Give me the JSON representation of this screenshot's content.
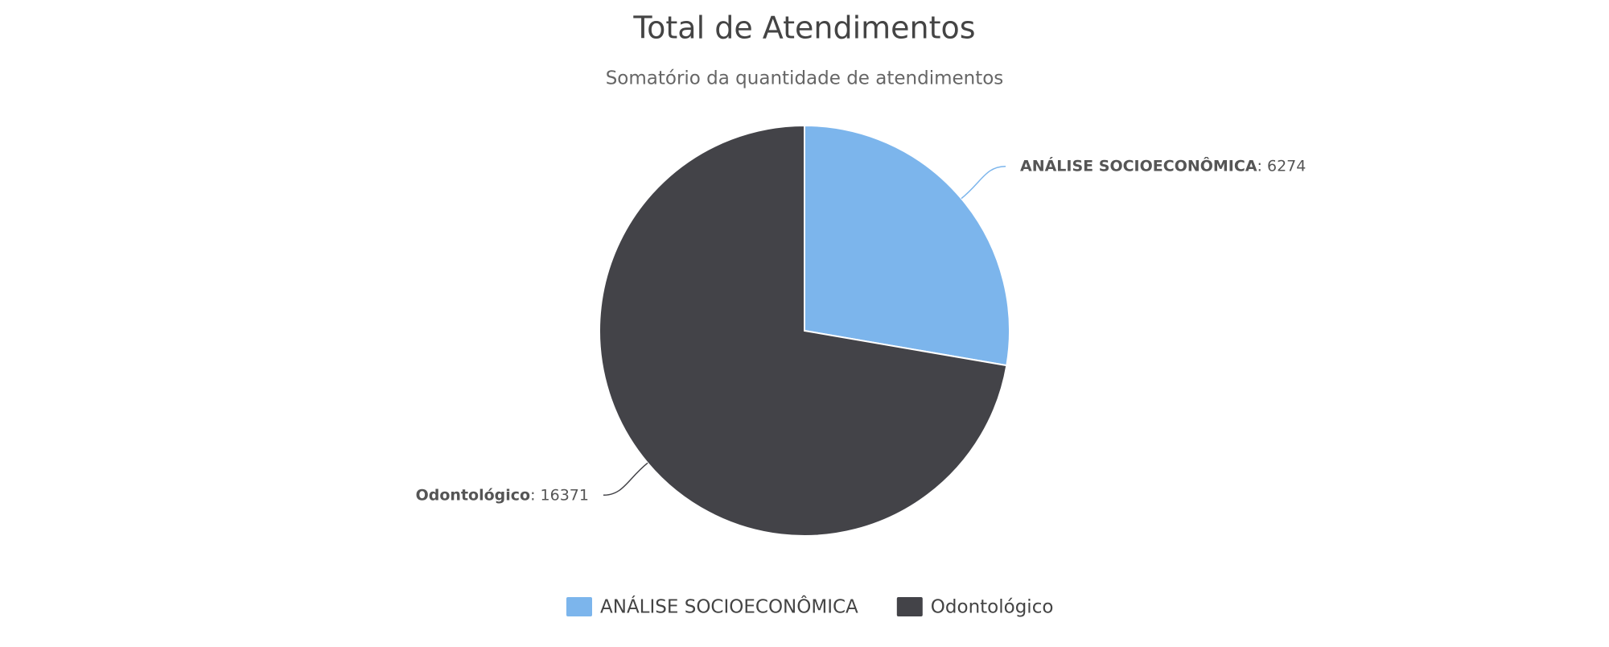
{
  "chart_data": {
    "type": "pie",
    "title": "Total de Atendimentos",
    "subtitle": "Somatório da quantidade de atendimentos",
    "categories": [
      "ANÁLISE SOCIOECONÔMICA",
      "Odontológico"
    ],
    "values": [
      6274,
      16371
    ],
    "colors": [
      "#7cb5ec",
      "#434348"
    ]
  }
}
